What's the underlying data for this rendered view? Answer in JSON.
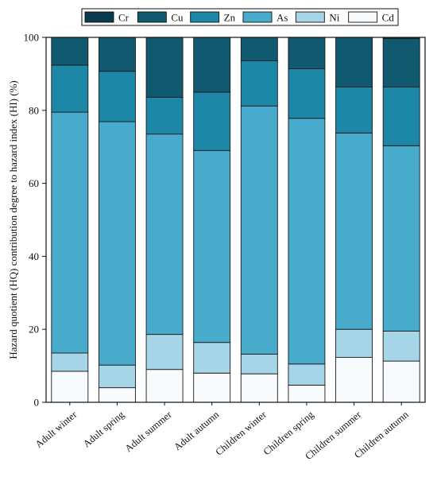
{
  "chart_data": {
    "type": "bar",
    "stacked": true,
    "title": "",
    "xlabel": "",
    "ylabel": "Hazard quotient (HQ) contribution degree to hazard index (HI) (%)",
    "ylim": [
      0,
      100
    ],
    "yticks": [
      0,
      20,
      40,
      60,
      80,
      100
    ],
    "grid": false,
    "legend": {
      "placement": "top",
      "orientation": "horizontal"
    },
    "categories": [
      "Adult winter",
      "Adult spring",
      "Adult summer",
      "Adult autumn",
      "Children winter",
      "Children spring",
      "Children summer",
      "Children autumn"
    ],
    "series": [
      {
        "name": "Cd",
        "color": "#f7fbfd",
        "values": [
          8.5,
          4.0,
          9.0,
          8.0,
          7.8,
          4.7,
          12.3,
          11.3
        ]
      },
      {
        "name": "Ni",
        "color": "#a6d5e8",
        "values": [
          5.0,
          6.2,
          9.6,
          8.4,
          5.4,
          5.8,
          7.7,
          8.2
        ]
      },
      {
        "name": "As",
        "color": "#48abcc",
        "values": [
          66.0,
          66.7,
          54.9,
          52.6,
          68.0,
          67.3,
          53.8,
          50.8
        ]
      },
      {
        "name": "Zn",
        "color": "#1c87a6",
        "values": [
          12.9,
          13.8,
          10.1,
          16.0,
          12.4,
          13.6,
          12.6,
          16.1
        ]
      },
      {
        "name": "Cu",
        "color": "#10596f",
        "values": [
          7.6,
          9.3,
          16.4,
          15.0,
          6.4,
          8.6,
          13.6,
          13.3
        ]
      },
      {
        "name": "Cr",
        "color": "#0a3a4d",
        "values": [
          0,
          0,
          0,
          0,
          0,
          0,
          0,
          0.3
        ]
      }
    ],
    "legend_order": [
      "Cr",
      "Cu",
      "Zn",
      "As",
      "Ni",
      "Cd"
    ]
  }
}
